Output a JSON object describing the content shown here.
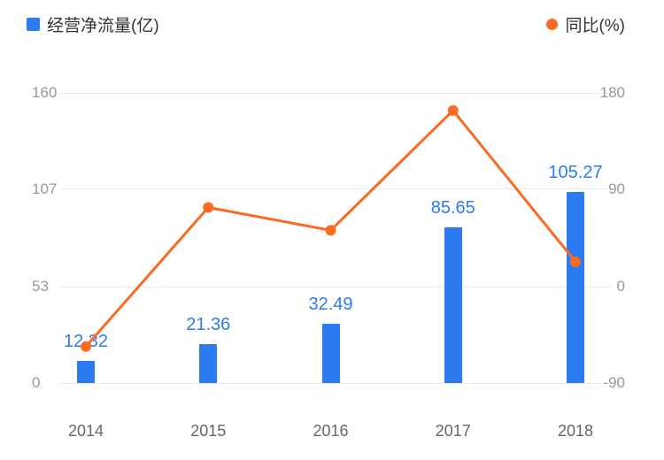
{
  "legend": {
    "bar_label": "经营净流量(亿)",
    "line_label": "同比(%)"
  },
  "colors": {
    "bar": "#2d7bf0",
    "line": "#fb6a21",
    "grid": "#ebebeb",
    "axis_text": "#999999",
    "category_text": "#666666",
    "legend_text": "#333333",
    "value_label": "#2d7bf0",
    "background": "#ffffff"
  },
  "chart_data": {
    "type": "bar",
    "title": "",
    "categories": [
      "2014",
      "2015",
      "2016",
      "2017",
      "2018"
    ],
    "series": [
      {
        "name": "经营净流量(亿)",
        "type": "bar",
        "axis": "left",
        "values": [
          12.32,
          21.36,
          32.49,
          85.65,
          105.27
        ],
        "labels": [
          "12.32",
          "21.36",
          "32.49",
          "85.65",
          "105.27"
        ]
      },
      {
        "name": "同比(%)",
        "type": "line",
        "axis": "right",
        "values": [
          -56,
          73.4,
          52.1,
          163.6,
          22.9
        ]
      }
    ],
    "left_axis": {
      "ticks": [
        0,
        53,
        107,
        160
      ],
      "min": 0,
      "max": 160
    },
    "right_axis": {
      "ticks": [
        -90,
        0,
        90,
        180
      ],
      "min": -90,
      "max": 180
    },
    "grid": true,
    "legend_position": "top"
  }
}
